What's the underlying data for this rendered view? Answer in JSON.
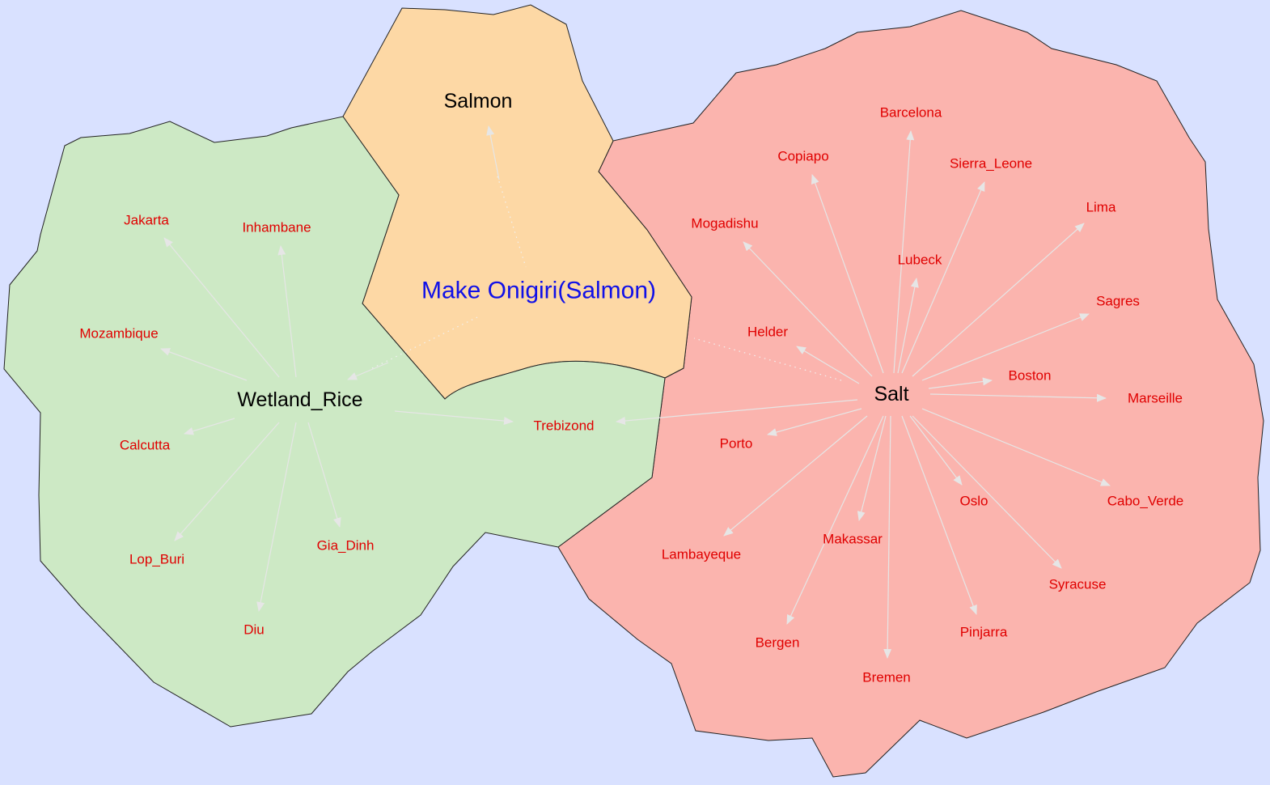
{
  "colors": {
    "background": "#d9e1ff",
    "wetland_region": "#cde9c5",
    "salmon_region": "#fdd8a5",
    "salt_region": "#fbb4ae",
    "place_text": "#e00000",
    "center_text": "#1010e8",
    "hub_text": "#000000",
    "arrow": "#e6e6e6"
  },
  "center": {
    "label": "Make Onigiri(Salmon)"
  },
  "hubs": {
    "salmon": {
      "label": "Salmon"
    },
    "wetland_rice": {
      "label": "Wetland_Rice"
    },
    "salt": {
      "label": "Salt"
    }
  },
  "places": {
    "jakarta": "Jakarta",
    "inhambane": "Inhambane",
    "mozambique": "Mozambique",
    "calcutta": "Calcutta",
    "lop_buri": "Lop_Buri",
    "gia_dinh": "Gia_Dinh",
    "diu": "Diu",
    "trebizond": "Trebizond",
    "barcelona": "Barcelona",
    "copiapo": "Copiapo",
    "sierra_leone": "Sierra_Leone",
    "lima": "Lima",
    "mogadishu": "Mogadishu",
    "lubeck": "Lubeck",
    "sagres": "Sagres",
    "helder": "Helder",
    "boston": "Boston",
    "marseille": "Marseille",
    "porto": "Porto",
    "oslo": "Oslo",
    "cabo_verde": "Cabo_Verde",
    "makassar": "Makassar",
    "lambayeque": "Lambayeque",
    "syracuse": "Syracuse",
    "pinjarra": "Pinjarra",
    "bergen": "Bergen",
    "bremen": "Bremen"
  }
}
